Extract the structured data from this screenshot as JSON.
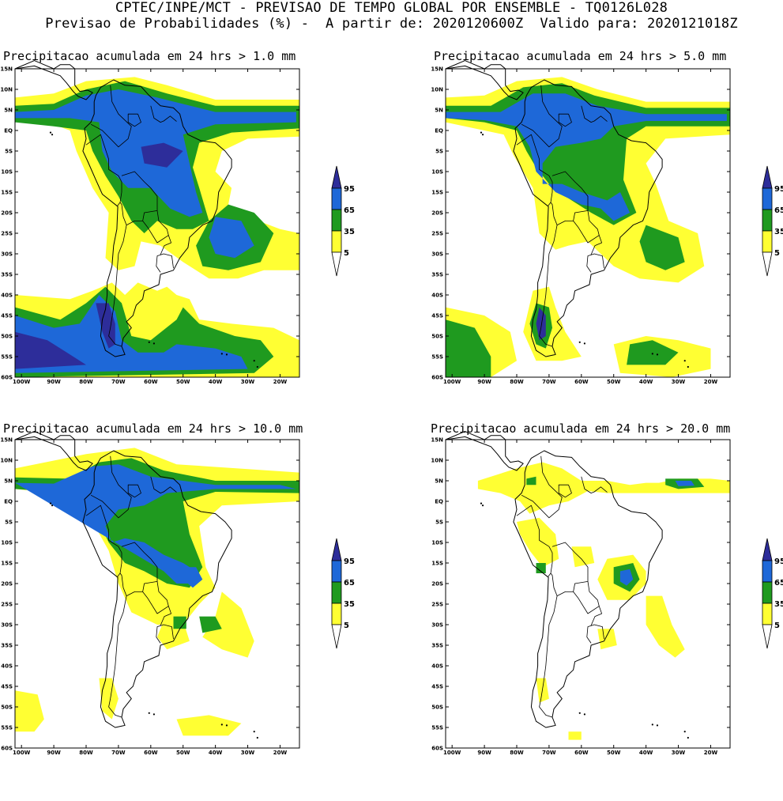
{
  "header": {
    "line1": "CPTEC/INPE/MCT - PREVISAO DE TEMPO GLOBAL POR ENSEMBLE - TQ0126L028",
    "line2": "Previsao de Probabilidades (%) -  A partir de: 2020120600Z  Valido para: 2020121018Z"
  },
  "panels": [
    {
      "title": "Precipitacao acumulada em 24 hrs > 1.0 mm"
    },
    {
      "title": "Precipitacao acumulada em 24 hrs > 5.0 mm"
    },
    {
      "title": "Precipitacao acumulada em 24 hrs > 10.0 mm"
    },
    {
      "title": "Precipitacao acumulada em 24 hrs > 20.0 mm"
    }
  ],
  "axes": {
    "lat_labels": [
      "15N",
      "10N",
      "5N",
      "EQ",
      "5S",
      "10S",
      "15S",
      "20S",
      "25S",
      "30S",
      "35S",
      "40S",
      "45S",
      "50S",
      "55S",
      "60S"
    ],
    "lon_labels": [
      "100W",
      "90W",
      "80W",
      "70W",
      "60W",
      "50W",
      "40W",
      "30W",
      "20W"
    ]
  },
  "colorbar": {
    "labels": [
      "95",
      "65",
      "35",
      "5"
    ],
    "colors": {
      "c5": "#ffff33",
      "c35": "#1f9a1f",
      "c65": "#1e68d8",
      "c95": "#2d2d9a"
    }
  }
}
